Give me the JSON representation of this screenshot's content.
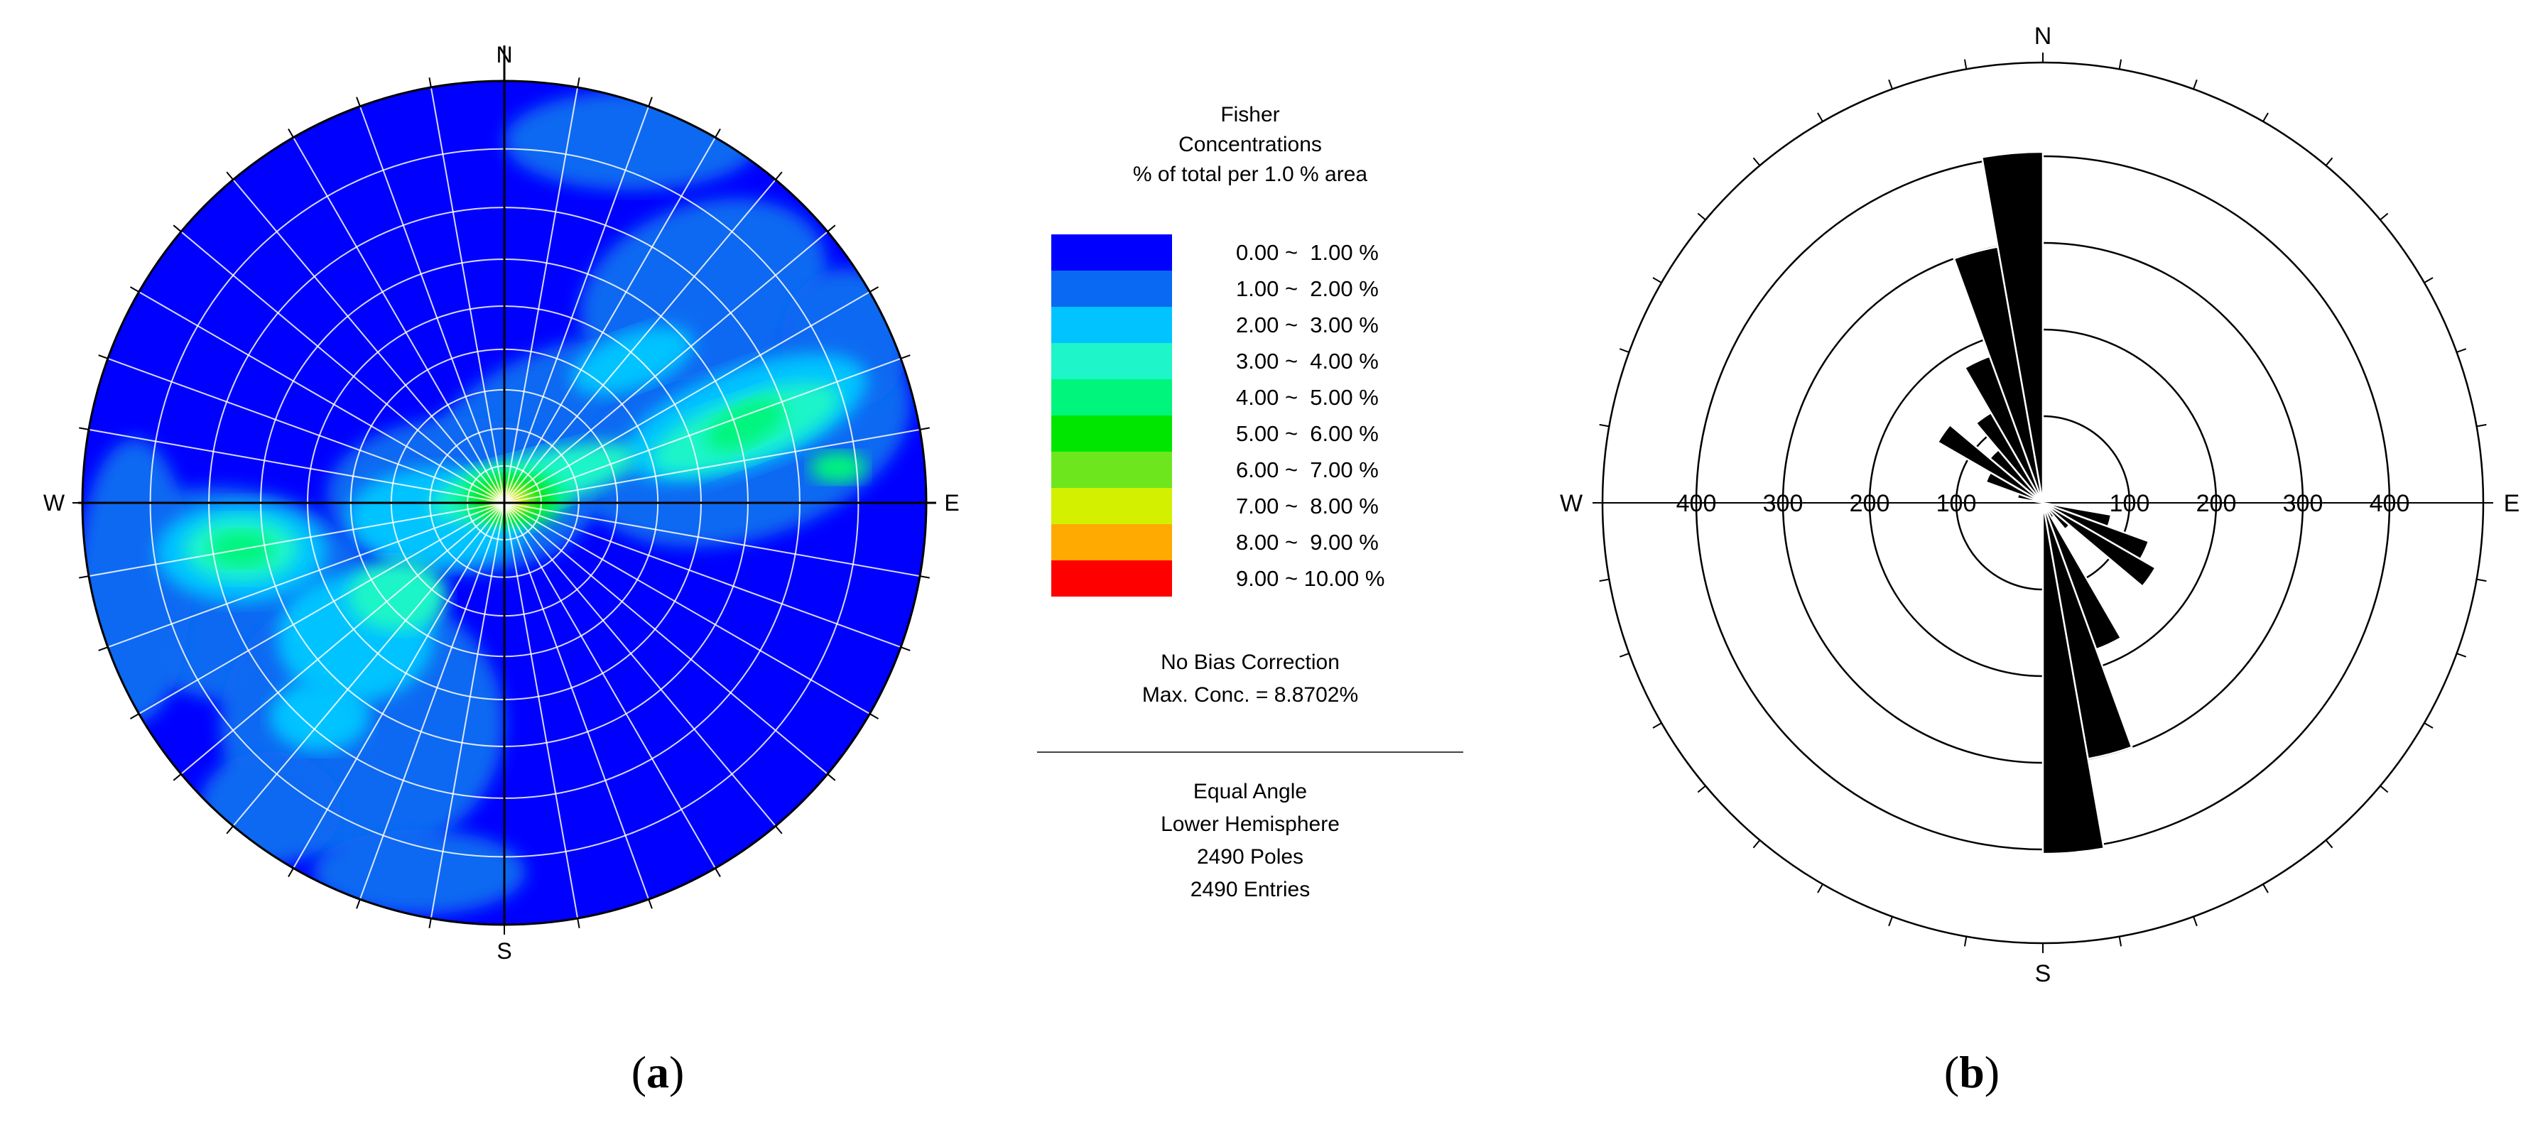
{
  "panel_a": {
    "caption_open": "(",
    "caption_letter": "a",
    "caption_close": ")",
    "directions": {
      "n": "N",
      "s": "S",
      "w": "W",
      "e": "E"
    },
    "legend": {
      "title_lines": [
        "Fisher",
        "Concentrations",
        "% of total per 1.0 % area"
      ],
      "bins": [
        {
          "label": "0.00 ~  1.00 %",
          "color": "#0000FF"
        },
        {
          "label": "1.00 ~  2.00 %",
          "color": "#0A69F2"
        },
        {
          "label": "2.00 ~  3.00 %",
          "color": "#00C3FF"
        },
        {
          "label": "3.00 ~  4.00 %",
          "color": "#1EF5C8"
        },
        {
          "label": "4.00 ~  5.00 %",
          "color": "#00F57D"
        },
        {
          "label": "5.00 ~  6.00 %",
          "color": "#00E600"
        },
        {
          "label": "6.00 ~  7.00 %",
          "color": "#6EE61E"
        },
        {
          "label": "7.00 ~  8.00 %",
          "color": "#D2F000"
        },
        {
          "label": "8.00 ~  9.00 %",
          "color": "#FFAA00"
        },
        {
          "label": "9.00 ~ 10.00 %",
          "color": "#FF0000"
        }
      ],
      "bias": "No Bias Correction",
      "max_conc": "Max. Conc. = 8.8702%",
      "projection": "Equal Angle",
      "hemisphere": "Lower Hemisphere",
      "poles": "2490 Poles",
      "entries": "2490 Entries"
    }
  },
  "chart_data": [
    {
      "type": "heatmap",
      "subtype": "stereonet pole density contours",
      "title": "Fisher Concentrations % of total per 1.0 % area",
      "directions": [
        "N",
        "E",
        "S",
        "W"
      ],
      "scale_bins": [
        [
          0,
          1
        ],
        [
          1,
          2
        ],
        [
          2,
          3
        ],
        [
          3,
          4
        ],
        [
          4,
          5
        ],
        [
          5,
          6
        ],
        [
          6,
          7
        ],
        [
          7,
          8
        ],
        [
          8,
          9
        ],
        [
          9,
          10
        ]
      ],
      "max_concentration_pct": 8.8702,
      "peak_region": "center",
      "poles": 2490,
      "projection": "Equal Angle",
      "hemisphere": "Lower Hemisphere"
    },
    {
      "type": "rose",
      "directions": [
        "N",
        "E",
        "S",
        "W"
      ],
      "radial_ticks": [
        100,
        200,
        300,
        400
      ],
      "radial_max": 400,
      "bin_width_deg": 10,
      "bins": [
        {
          "azimuth_start": 340,
          "value": 300
        },
        {
          "azimuth_start": 350,
          "value": 405
        },
        {
          "azimuth_start": 330,
          "value": 180
        },
        {
          "azimuth_start": 320,
          "value": 120
        },
        {
          "azimuth_start": 310,
          "value": 80
        },
        {
          "azimuth_start": 300,
          "value": 140
        },
        {
          "azimuth_start": 290,
          "value": 70
        },
        {
          "azimuth_start": 280,
          "value": 30
        },
        {
          "azimuth_start": 100,
          "value": 80
        },
        {
          "azimuth_start": 110,
          "value": 130
        },
        {
          "azimuth_start": 120,
          "value": 150
        },
        {
          "azimuth_start": 130,
          "value": 40
        },
        {
          "azimuth_start": 140,
          "value": 20
        },
        {
          "azimuth_start": 150,
          "value": 180
        },
        {
          "azimuth_start": 160,
          "value": 300
        },
        {
          "azimuth_start": 170,
          "value": 405
        }
      ]
    }
  ],
  "panel_b": {
    "caption_open": "(",
    "caption_letter": "b",
    "caption_close": ")",
    "directions": {
      "n": "N",
      "s": "S",
      "w": "W",
      "e": "E"
    },
    "left_ticks": [
      "400",
      "300",
      "200",
      "100"
    ],
    "right_ticks": [
      "100",
      "200",
      "300",
      "400"
    ]
  }
}
